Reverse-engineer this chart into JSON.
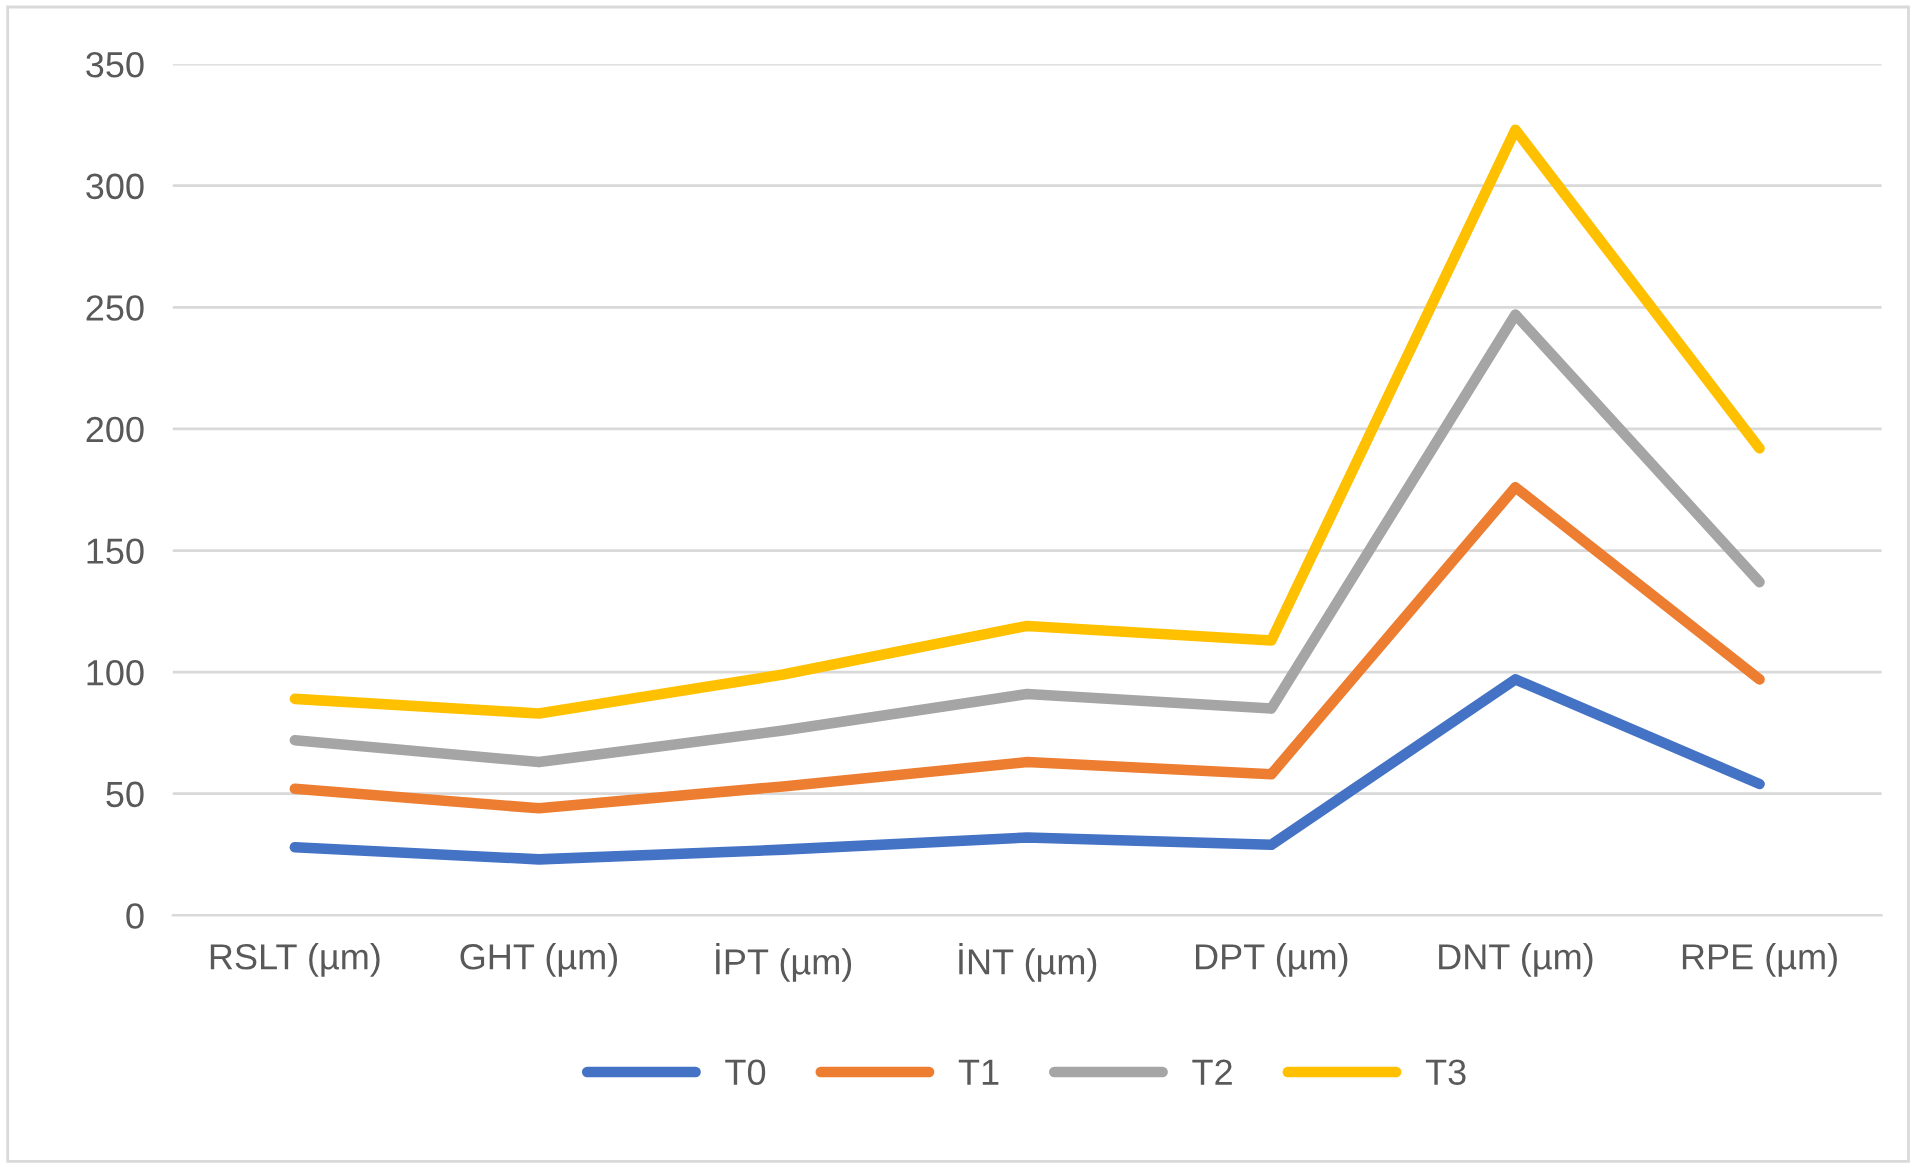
{
  "chart_data": {
    "type": "line",
    "categories": [
      "RSLT (µm)",
      "GHT (µm)",
      "İPT (µm)",
      "İNT (µm)",
      "DPT (µm)",
      "DNT (µm)",
      "RPE (µm)"
    ],
    "series": [
      {
        "name": "T0",
        "color": "#4472c4",
        "values": [
          28,
          23,
          27,
          32,
          29,
          97,
          54
        ]
      },
      {
        "name": "T1",
        "color": "#ed7d31",
        "values": [
          52,
          44,
          53,
          63,
          58,
          176,
          97
        ]
      },
      {
        "name": "T2",
        "color": "#a5a5a5",
        "values": [
          72,
          63,
          76,
          91,
          85,
          247,
          137
        ]
      },
      {
        "name": "T3",
        "color": "#ffc000",
        "values": [
          89,
          83,
          99,
          119,
          113,
          323,
          192
        ]
      }
    ],
    "ylim": [
      0,
      350
    ],
    "yticks": [
      0,
      50,
      100,
      150,
      200,
      250,
      300,
      350
    ],
    "grid": "y",
    "legend": "bottom",
    "marker": "none",
    "line_style": "solid"
  }
}
